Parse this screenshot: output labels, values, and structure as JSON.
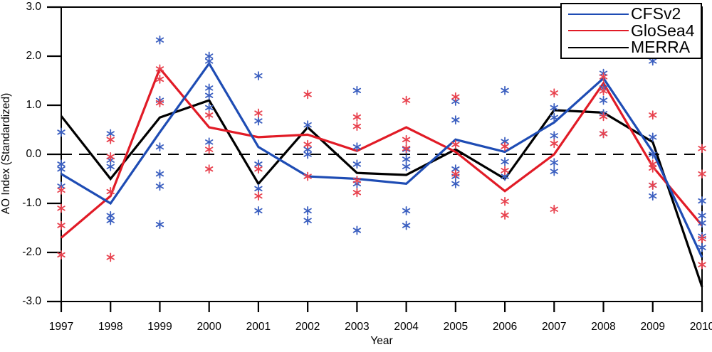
{
  "figure": {
    "ylabel": "AO Index (Standardized)",
    "xlabel": "Year"
  },
  "chart_data": {
    "type": "line",
    "title": "",
    "xlabel": "Year",
    "ylabel": "AO Index (Standardized)",
    "ylim": [
      -3.0,
      3.0
    ],
    "grid": false,
    "zero_reference_line": "dashed",
    "legend_position": "top-right",
    "x": [
      1997,
      1998,
      1999,
      2000,
      2001,
      2002,
      2003,
      2004,
      2005,
      2006,
      2007,
      2008,
      2009,
      2010
    ],
    "xticks": [
      "1997",
      "1998",
      "1999",
      "2000",
      "2001",
      "2002",
      "2003",
      "2004",
      "2005",
      "2006",
      "2007",
      "2008",
      "2009",
      "2010"
    ],
    "yticks": [
      "3.0",
      "2.0",
      "1.0",
      "0.0",
      "-1.0",
      "-2.0",
      "-3.0"
    ],
    "series": [
      {
        "name": "CFSv2",
        "color": "#1e4cb4",
        "values": [
          -0.4,
          -1.0,
          0.45,
          1.85,
          0.15,
          -0.45,
          -0.5,
          -0.6,
          0.3,
          0.05,
          0.65,
          1.55,
          0.05,
          -2.1
        ]
      },
      {
        "name": "GloSea4",
        "color": "#e11b26",
        "values": [
          -1.7,
          -0.85,
          1.75,
          0.55,
          0.35,
          0.4,
          0.07,
          0.55,
          0.05,
          -0.75,
          0.0,
          1.45,
          -0.25,
          -1.45
        ]
      },
      {
        "name": "MERRA",
        "color": "#000000",
        "values": [
          0.78,
          -0.5,
          0.75,
          1.1,
          -0.6,
          0.55,
          -0.38,
          -0.42,
          0.1,
          -0.5,
          0.9,
          0.85,
          0.25,
          -2.7
        ]
      }
    ],
    "ensemble_markers": [
      {
        "name": "CFSv2-members",
        "color": "#3b5fc0",
        "marker": "asterisk",
        "values_by_year": [
          [
            0.45,
            -0.2,
            -0.3,
            -0.65
          ],
          [
            0.42,
            -0.12,
            -0.25,
            -1.25,
            -1.35
          ],
          [
            2.33,
            1.1,
            0.15,
            -0.4,
            -0.65,
            -1.43
          ],
          [
            2.0,
            1.9,
            1.35,
            1.2,
            0.95,
            0.25
          ],
          [
            1.6,
            0.68,
            -0.2,
            -0.7,
            -1.15
          ],
          [
            0.6,
            0.1,
            0.0,
            -1.15,
            -1.35
          ],
          [
            1.3,
            0.15,
            -0.2,
            -0.6,
            -1.55
          ],
          [
            0.1,
            -0.1,
            -0.25,
            -1.15,
            -1.45
          ],
          [
            1.08,
            0.7,
            -0.3,
            -0.45,
            -0.6
          ],
          [
            1.3,
            0.26,
            -0.15,
            -0.45
          ],
          [
            0.95,
            0.75,
            0.38,
            -0.17,
            -0.35
          ],
          [
            1.65,
            1.35,
            1.1,
            0.83,
            0.42
          ],
          [
            1.9,
            0.35,
            0.0,
            -0.63,
            -0.85
          ],
          [
            -0.95,
            -1.25,
            -1.4,
            -1.67,
            -1.9
          ]
        ]
      },
      {
        "name": "GloSea4-members",
        "color": "#e8424e",
        "marker": "asterisk",
        "values_by_year": [
          [
            -0.73,
            -1.1,
            -1.45,
            -2.05
          ],
          [
            0.3,
            -0.05,
            -0.76,
            -2.1
          ],
          [
            1.74,
            1.53,
            1.05
          ],
          [
            0.8,
            0.1,
            -0.3
          ],
          [
            0.84,
            -0.3,
            -0.85
          ],
          [
            1.22,
            0.2,
            -0.45
          ],
          [
            0.76,
            0.57,
            -0.53,
            -0.78
          ],
          [
            1.1,
            0.3,
            0.12
          ],
          [
            1.17,
            0.2,
            -0.4
          ],
          [
            0.16,
            -0.33,
            -0.96,
            -1.24
          ],
          [
            1.25,
            0.22,
            -1.12
          ],
          [
            1.58,
            1.29,
            0.77,
            0.42
          ],
          [
            0.8,
            -0.2,
            -0.28,
            -0.63
          ],
          [
            0.12,
            -0.4,
            -1.72,
            -2.25
          ]
        ]
      }
    ]
  }
}
